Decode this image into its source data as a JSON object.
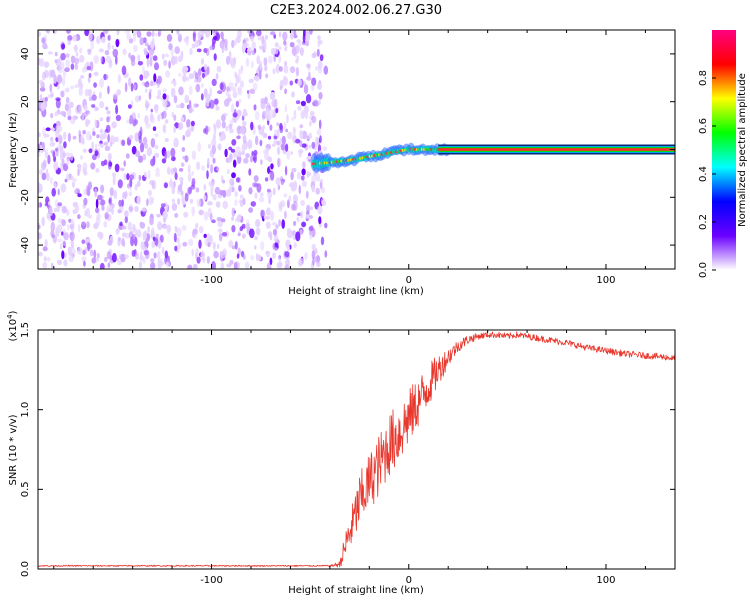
{
  "title": "C2E3.2024.002.06.27.G30",
  "chart_data": [
    {
      "type": "heatmap",
      "xlabel": "Height of straight line (km)",
      "ylabel": "Frequency (Hz)",
      "xlim": [
        -188,
        135
      ],
      "ylim": [
        -50,
        50
      ],
      "xticks": [
        -100,
        0,
        100
      ],
      "xtick_labels": [
        "-100",
        "0",
        "100"
      ],
      "yticks": [
        -40,
        -20,
        0,
        20,
        40
      ],
      "ytick_labels": [
        "-40",
        "-20",
        "0",
        "20",
        "40"
      ],
      "grid": false,
      "noise_region_x": [
        -188,
        -45
      ],
      "ridge": {
        "x": [
          -48,
          -40,
          -30,
          -20,
          -10,
          0,
          10,
          20,
          40,
          80,
          135
        ],
        "freq": [
          -6,
          -5.5,
          -4.5,
          -3,
          -1.5,
          0,
          0,
          0,
          0,
          0,
          0
        ]
      },
      "colorbar": {
        "label": "Normalized spectral amplitude",
        "range": [
          0,
          1
        ],
        "ticks": [
          0.0,
          0.2,
          0.4,
          0.6,
          0.8
        ],
        "tick_labels": [
          "0.0",
          "0.2",
          "0.4",
          "0.6",
          "0.8"
        ],
        "colors": [
          "#ffffff",
          "#6a00ff",
          "#0000ff",
          "#00ffff",
          "#00ff00",
          "#ffff00",
          "#ff0000",
          "#ff0080"
        ]
      }
    },
    {
      "type": "line",
      "xlabel": "Height of straight line (km)",
      "ylabel": "SNR (10 * v/v)",
      "scale_label": "(x10",
      "scale_exponent": "4",
      "scale_close": ")",
      "xlim": [
        -188,
        135
      ],
      "ylim": [
        0,
        1.5
      ],
      "xticks": [
        -100,
        0,
        100
      ],
      "xtick_labels": [
        "-100",
        "0",
        "100"
      ],
      "yticks": [
        0,
        0.5,
        1.0,
        1.5
      ],
      "ytick_labels": [
        "0.0",
        "0.5",
        "1.0",
        "1.5"
      ],
      "grid": false,
      "series": [
        {
          "color": "#e8382e",
          "x": [
            -188,
            -150,
            -100,
            -60,
            -40,
            -35,
            -32,
            -28,
            -25,
            -20,
            -15,
            -10,
            -5,
            0,
            5,
            10,
            15,
            20,
            25,
            30,
            35,
            40,
            45,
            50,
            55,
            60,
            70,
            80,
            90,
            100,
            110,
            120,
            130,
            135
          ],
          "y": [
            0.02,
            0.02,
            0.02,
            0.02,
            0.02,
            0.03,
            0.15,
            0.3,
            0.42,
            0.55,
            0.65,
            0.78,
            0.85,
            0.95,
            1.05,
            1.15,
            1.25,
            1.33,
            1.4,
            1.44,
            1.46,
            1.47,
            1.47,
            1.46,
            1.47,
            1.46,
            1.44,
            1.42,
            1.39,
            1.37,
            1.35,
            1.34,
            1.33,
            1.32
          ],
          "jitter": [
            0.004,
            0.004,
            0.004,
            0.004,
            0.004,
            0.02,
            0.1,
            0.14,
            0.18,
            0.18,
            0.2,
            0.2,
            0.2,
            0.18,
            0.16,
            0.14,
            0.1,
            0.06,
            0.04,
            0.03,
            0.02,
            0.02,
            0.02,
            0.02,
            0.02,
            0.02,
            0.02,
            0.02,
            0.02,
            0.02,
            0.02,
            0.02,
            0.02,
            0.02
          ]
        }
      ]
    }
  ]
}
